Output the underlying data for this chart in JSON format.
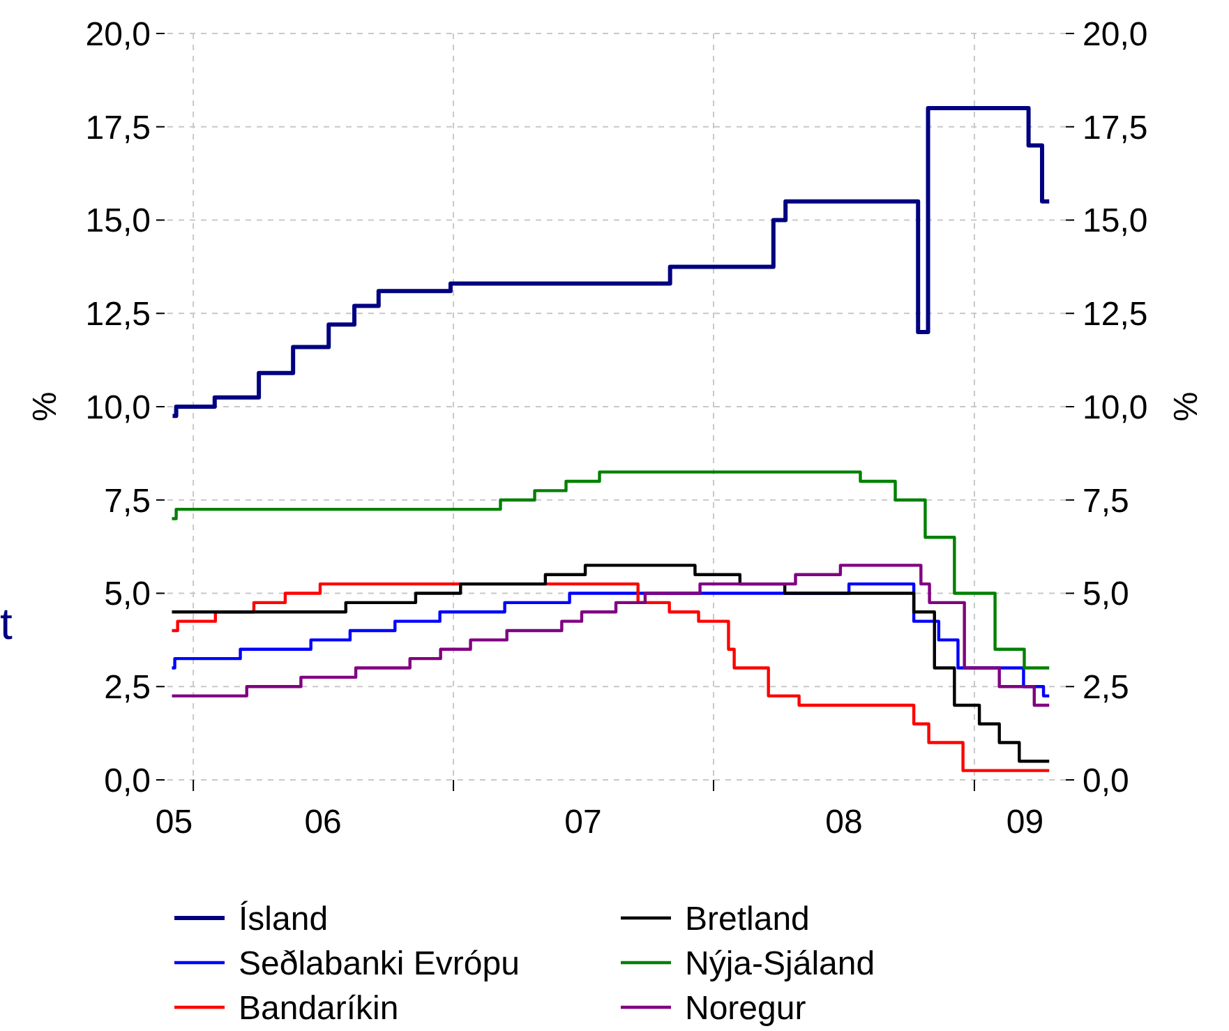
{
  "chart_data": {
    "type": "step",
    "ylabel": "%",
    "y2label": "%",
    "annotations": [
      "t"
    ],
    "xlim": [
      "2005-11-10",
      "2009-05-21"
    ],
    "xticks": [
      {
        "value": "2005-12-05",
        "label": "05"
      },
      {
        "value": "2006-01-01",
        "label": null
      },
      {
        "value": "2006-07-02",
        "label": "06"
      },
      {
        "value": "2007-01-01",
        "label": null
      },
      {
        "value": "2007-07-02",
        "label": "07"
      },
      {
        "value": "2008-01-01",
        "label": null
      },
      {
        "value": "2008-07-02",
        "label": "08"
      },
      {
        "value": "2009-01-01",
        "label": null
      },
      {
        "value": "2009-03-13",
        "label": "09"
      }
    ],
    "ylim": [
      0,
      20
    ],
    "yticks": [
      {
        "value": 0,
        "label": "0,0"
      },
      {
        "value": 2.5,
        "label": "2,5"
      },
      {
        "value": 5,
        "label": "5,0"
      },
      {
        "value": 7.5,
        "label": "7,5"
      },
      {
        "value": 10,
        "label": "10,0"
      },
      {
        "value": 12.5,
        "label": "12,5"
      },
      {
        "value": 15,
        "label": "15,0"
      },
      {
        "value": 17.5,
        "label": "17,5"
      },
      {
        "value": 20,
        "label": "20,0"
      }
    ],
    "y2lim": [
      0,
      20
    ],
    "y2ticks": [
      {
        "value": 0,
        "label": "0,0"
      },
      {
        "value": 2.5,
        "label": "2,5"
      },
      {
        "value": 5,
        "label": "5,0"
      },
      {
        "value": 7.5,
        "label": "7,5"
      },
      {
        "value": 10,
        "label": "10,0"
      },
      {
        "value": 12.5,
        "label": "12,5"
      },
      {
        "value": 15,
        "label": "15,0"
      },
      {
        "value": 17.5,
        "label": "17,5"
      },
      {
        "value": 20,
        "label": "20,0"
      }
    ],
    "grid": true,
    "legend": "bottom",
    "line_style": "solid",
    "series": [
      {
        "name": "Ísland",
        "color": "#000080",
        "x": [
          "2005-12-03",
          "2005-12-08",
          "2006-01-31",
          "2006-04-03",
          "2006-05-21",
          "2006-07-10",
          "2006-08-15",
          "2006-09-18",
          "2006-12-28",
          "2007-11-01",
          "2008-03-25",
          "2008-04-11",
          "2008-10-14",
          "2008-10-28",
          "2009-03-18",
          "2009-04-06",
          "2009-04-16"
        ],
        "values": [
          9.75,
          10,
          10.25,
          10.9,
          11.6,
          12.2,
          12.7,
          13.1,
          13.3,
          13.75,
          15,
          15.5,
          12,
          18,
          17,
          15.5,
          15.5
        ]
      },
      {
        "name": "Seðlabanki Evrópu",
        "color": "#0000ff",
        "x": [
          "2005-12-02",
          "2005-12-06",
          "2006-03-08",
          "2006-06-15",
          "2006-08-09",
          "2006-10-11",
          "2006-12-13",
          "2007-03-14",
          "2007-06-13",
          "2008-07-09",
          "2008-10-08",
          "2008-11-12",
          "2008-12-09",
          "2009-03-11",
          "2009-04-08",
          "2009-04-16"
        ],
        "values": [
          3,
          3.25,
          3.5,
          3.75,
          4,
          4.25,
          4.5,
          4.75,
          5,
          5.25,
          4.25,
          3.75,
          3,
          2.5,
          2.25,
          2.25
        ]
      },
      {
        "name": "Bandaríkin",
        "color": "#ff0000",
        "x": [
          "2005-12-02",
          "2005-12-10",
          "2006-02-01",
          "2006-03-27",
          "2006-05-10",
          "2006-06-28",
          "2007-09-17",
          "2007-10-31",
          "2007-12-11",
          "2008-01-22",
          "2008-01-30",
          "2008-03-18",
          "2008-04-30",
          "2008-10-08",
          "2008-10-29",
          "2008-12-16",
          "2009-04-16"
        ],
        "values": [
          4,
          4.25,
          4.5,
          4.75,
          5,
          5.25,
          4.75,
          4.5,
          4.25,
          3.5,
          3,
          2.25,
          2,
          1.5,
          1,
          0.25,
          0.25
        ]
      },
      {
        "name": "Bretland",
        "color": "#000000",
        "x": [
          "2005-12-02",
          "2006-08-03",
          "2006-11-09",
          "2007-01-11",
          "2007-05-10",
          "2007-07-05",
          "2007-12-06",
          "2008-02-07",
          "2008-04-10",
          "2008-10-08",
          "2008-11-06",
          "2008-12-04",
          "2009-01-08",
          "2009-02-05",
          "2009-03-05",
          "2009-04-16"
        ],
        "values": [
          4.5,
          4.75,
          5,
          5.25,
          5.5,
          5.75,
          5.5,
          5.25,
          5,
          4.5,
          3,
          2,
          1.5,
          1,
          0.5,
          0.5
        ]
      },
      {
        "name": "Nýja-Sjáland",
        "color": "#008000",
        "x": [
          "2005-12-02",
          "2005-12-08",
          "2007-03-08",
          "2007-04-25",
          "2007-06-08",
          "2007-07-25",
          "2008-07-25",
          "2008-09-12",
          "2008-10-24",
          "2008-12-04",
          "2009-01-30",
          "2009-03-12",
          "2009-04-16"
        ],
        "values": [
          7,
          7.25,
          7.5,
          7.75,
          8,
          8.25,
          8,
          7.5,
          6.5,
          5,
          3.5,
          3,
          3
        ]
      },
      {
        "name": "Noregur",
        "color": "#800080",
        "x": [
          "2005-12-02",
          "2006-03-17",
          "2006-06-01",
          "2006-08-17",
          "2006-11-01",
          "2006-12-14",
          "2007-01-25",
          "2007-03-17",
          "2007-06-02",
          "2007-06-30",
          "2007-08-17",
          "2007-09-27",
          "2007-12-13",
          "2008-04-25",
          "2008-06-27",
          "2008-10-18",
          "2008-10-30",
          "2008-12-18",
          "2009-02-05",
          "2009-03-26",
          "2009-04-16"
        ],
        "values": [
          2.25,
          2.5,
          2.75,
          3,
          3.25,
          3.5,
          3.75,
          4,
          4.25,
          4.5,
          4.75,
          5,
          5.25,
          5.5,
          5.75,
          5.25,
          4.75,
          3,
          2.5,
          2,
          2
        ]
      }
    ]
  }
}
